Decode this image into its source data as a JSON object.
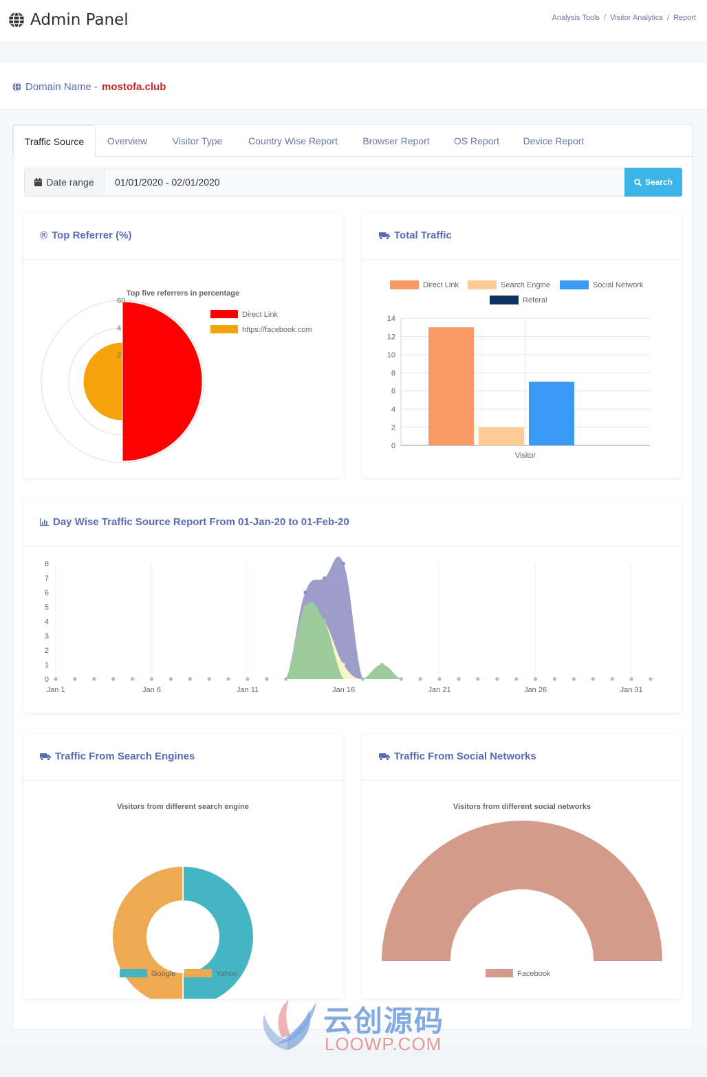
{
  "app": {
    "title": "Admin Panel"
  },
  "breadcrumb": [
    "Analysis Tools",
    "Visitor Analytics",
    "Report"
  ],
  "domain": {
    "label": "Domain Name -",
    "value": "mostofa.club"
  },
  "tabs": [
    "Traffic Source",
    "Overview",
    "Visitor Type",
    "Country Wise Report",
    "Browser Report",
    "OS Report",
    "Device Report"
  ],
  "date_range": {
    "label": "Date range",
    "value": "01/01/2020 - 02/01/2020",
    "search_label": "Search"
  },
  "cards": {
    "top_referrer": "Top Referrer (%)",
    "total_traffic": "Total Traffic",
    "day_wise": "Day Wise Traffic Source Report From 01-Jan-20 to 01-Feb-20",
    "search_engines": "Traffic From Search Engines",
    "social_networks": "Traffic From Social Networks"
  },
  "colors": {
    "accent": "#5a6bb5",
    "button": "#3bb4e6",
    "domain_value": "#c62828"
  },
  "watermark": {
    "cn": "云创源码",
    "en": "LOOWP.COM"
  },
  "chart_data": [
    {
      "type": "polarArea",
      "title": "Top five referrers in percentage",
      "legend": "top-right",
      "r_ticks": [
        "2",
        "4",
        "60"
      ],
      "series": [
        {
          "name": "Direct Link",
          "value": 58,
          "color": "#ff0000"
        },
        {
          "name": "https://facebook.com",
          "value": 14,
          "color": "#f5a30a"
        }
      ]
    },
    {
      "type": "bar",
      "categories": [
        "Visitor"
      ],
      "ylim": [
        0,
        14
      ],
      "yticks": [
        0,
        2,
        4,
        6,
        8,
        10,
        12,
        14
      ],
      "legend": "top",
      "series": [
        {
          "name": "Direct Link",
          "values": [
            13
          ],
          "color": "#f99a66"
        },
        {
          "name": "Search Engine",
          "values": [
            2
          ],
          "color": "#fdcb95"
        },
        {
          "name": "Social Network",
          "values": [
            7
          ],
          "color": "#3a9bf5"
        },
        {
          "name": "Referal",
          "values": [
            0
          ],
          "color": "#0f3460"
        }
      ]
    },
    {
      "type": "area",
      "x": [
        "Jan 1",
        "Jan 2",
        "Jan 3",
        "Jan 4",
        "Jan 5",
        "Jan 6",
        "Jan 7",
        "Jan 8",
        "Jan 9",
        "Jan 10",
        "Jan 11",
        "Jan 12",
        "Jan 13",
        "Jan 14",
        "Jan 15",
        "Jan 16",
        "Jan 17",
        "Jan 18",
        "Jan 19",
        "Jan 20",
        "Jan 21",
        "Jan 22",
        "Jan 23",
        "Jan 24",
        "Jan 25",
        "Jan 26",
        "Jan 27",
        "Jan 28",
        "Jan 29",
        "Jan 30",
        "Jan 31",
        "Feb 1"
      ],
      "xtick_labels": [
        "Jan 1",
        "Jan 6",
        "Jan 11",
        "Jan 16",
        "Jan 21",
        "Jan 26",
        "Jan 31"
      ],
      "ylim": [
        0,
        8
      ],
      "yticks": [
        0,
        1,
        2,
        3,
        4,
        5,
        6,
        7,
        8
      ],
      "series": [
        {
          "name": "Total",
          "color": "#9c9dcb",
          "values": [
            0,
            0,
            0,
            0,
            0,
            0,
            0,
            0,
            0,
            0,
            0,
            0,
            0,
            6,
            7,
            8,
            0,
            1,
            0,
            0,
            0,
            0,
            0,
            0,
            0,
            0,
            0,
            0,
            0,
            0,
            0,
            0
          ]
        },
        {
          "name": "Search",
          "color": "#f7f6c8",
          "values": [
            0,
            0,
            0,
            0,
            0,
            0,
            0,
            0,
            0,
            0,
            0,
            0,
            0,
            5,
            4,
            1,
            0,
            1,
            0,
            0,
            0,
            0,
            0,
            0,
            0,
            0,
            0,
            0,
            0,
            0,
            0,
            0
          ]
        },
        {
          "name": "Direct",
          "color": "#9ccb9c",
          "values": [
            0,
            0,
            0,
            0,
            0,
            0,
            0,
            0,
            0,
            0,
            0,
            0,
            0,
            5,
            4,
            0,
            0,
            1,
            0,
            0,
            0,
            0,
            0,
            0,
            0,
            0,
            0,
            0,
            0,
            0,
            0,
            0
          ]
        }
      ]
    },
    {
      "type": "pie",
      "title": "Visitors from different search engine",
      "legend": "bottom",
      "series": [
        {
          "name": "Google",
          "value": 1,
          "color": "#45b5c4"
        },
        {
          "name": "Yahoo",
          "value": 1,
          "color": "#eeaa50"
        }
      ]
    },
    {
      "type": "pie",
      "title": "Visitors from different social networks",
      "legend": "bottom",
      "series": [
        {
          "name": "Facebook",
          "value": 1,
          "color": "#d59b8a"
        }
      ]
    }
  ]
}
